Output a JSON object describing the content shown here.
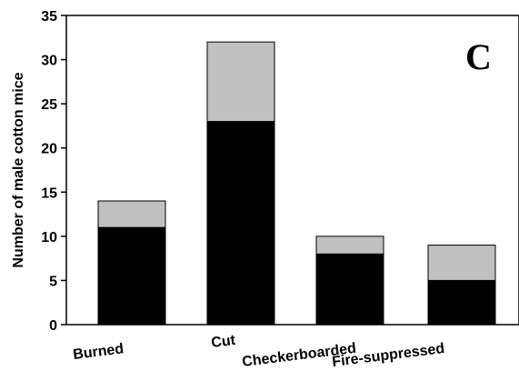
{
  "chart_data": {
    "type": "bar",
    "stacked": true,
    "panel_label": "C",
    "title": "",
    "xlabel": "",
    "ylabel": "Number of male cotton mice",
    "categories": [
      "Burned",
      "Cut",
      "Checkerboarded",
      "Fire-suppressed"
    ],
    "series": [
      {
        "values": [
          11,
          23,
          8,
          5
        ],
        "color": "#000000"
      },
      {
        "values": [
          3,
          9,
          2,
          4
        ],
        "color": "#c0c0c0"
      }
    ],
    "ylim": [
      0,
      35
    ],
    "yticks": [
      0,
      5,
      10,
      15,
      20,
      25,
      30,
      35
    ],
    "grid": false,
    "legend": "none"
  }
}
